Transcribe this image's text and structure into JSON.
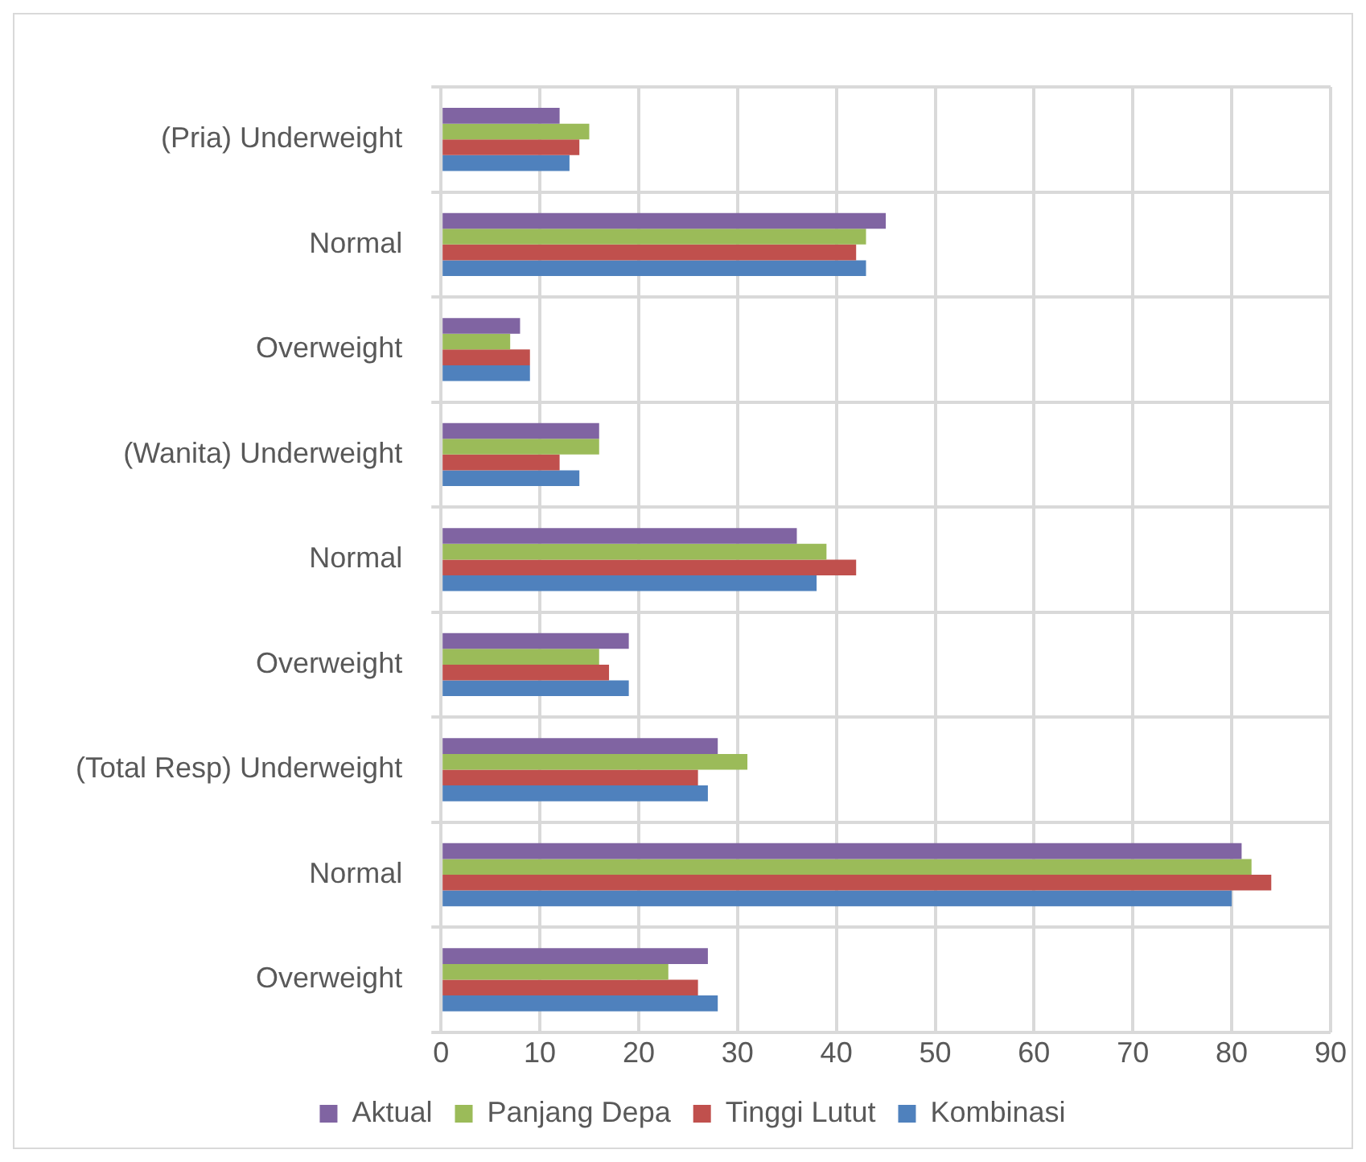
{
  "chart_data": {
    "type": "bar",
    "orientation": "horizontal",
    "categories": [
      "(Pria) Underweight",
      "Normal",
      "Overweight",
      "(Wanita) Underweight",
      "Normal",
      "Overweight",
      "(Total Resp) Underweight",
      "Normal",
      "Overweight"
    ],
    "series": [
      {
        "name": "Aktual",
        "color": "#8064a2",
        "values": [
          12,
          45,
          8,
          16,
          36,
          19,
          28,
          81,
          27
        ]
      },
      {
        "name": "Panjang Depa",
        "color": "#9bbb59",
        "values": [
          15,
          43,
          7,
          16,
          39,
          16,
          31,
          82,
          23
        ]
      },
      {
        "name": "Tinggi Lutut",
        "color": "#c0504d",
        "values": [
          14,
          42,
          9,
          12,
          42,
          17,
          26,
          84,
          26
        ]
      },
      {
        "name": "Kombinasi",
        "color": "#4f81bd",
        "values": [
          13,
          43,
          9,
          14,
          38,
          19,
          27,
          80,
          28
        ]
      }
    ],
    "xlim": [
      0,
      90
    ],
    "xticks": [
      0,
      10,
      20,
      30,
      40,
      50,
      60,
      70,
      80,
      90
    ],
    "grid": true,
    "legend": "bottom"
  }
}
